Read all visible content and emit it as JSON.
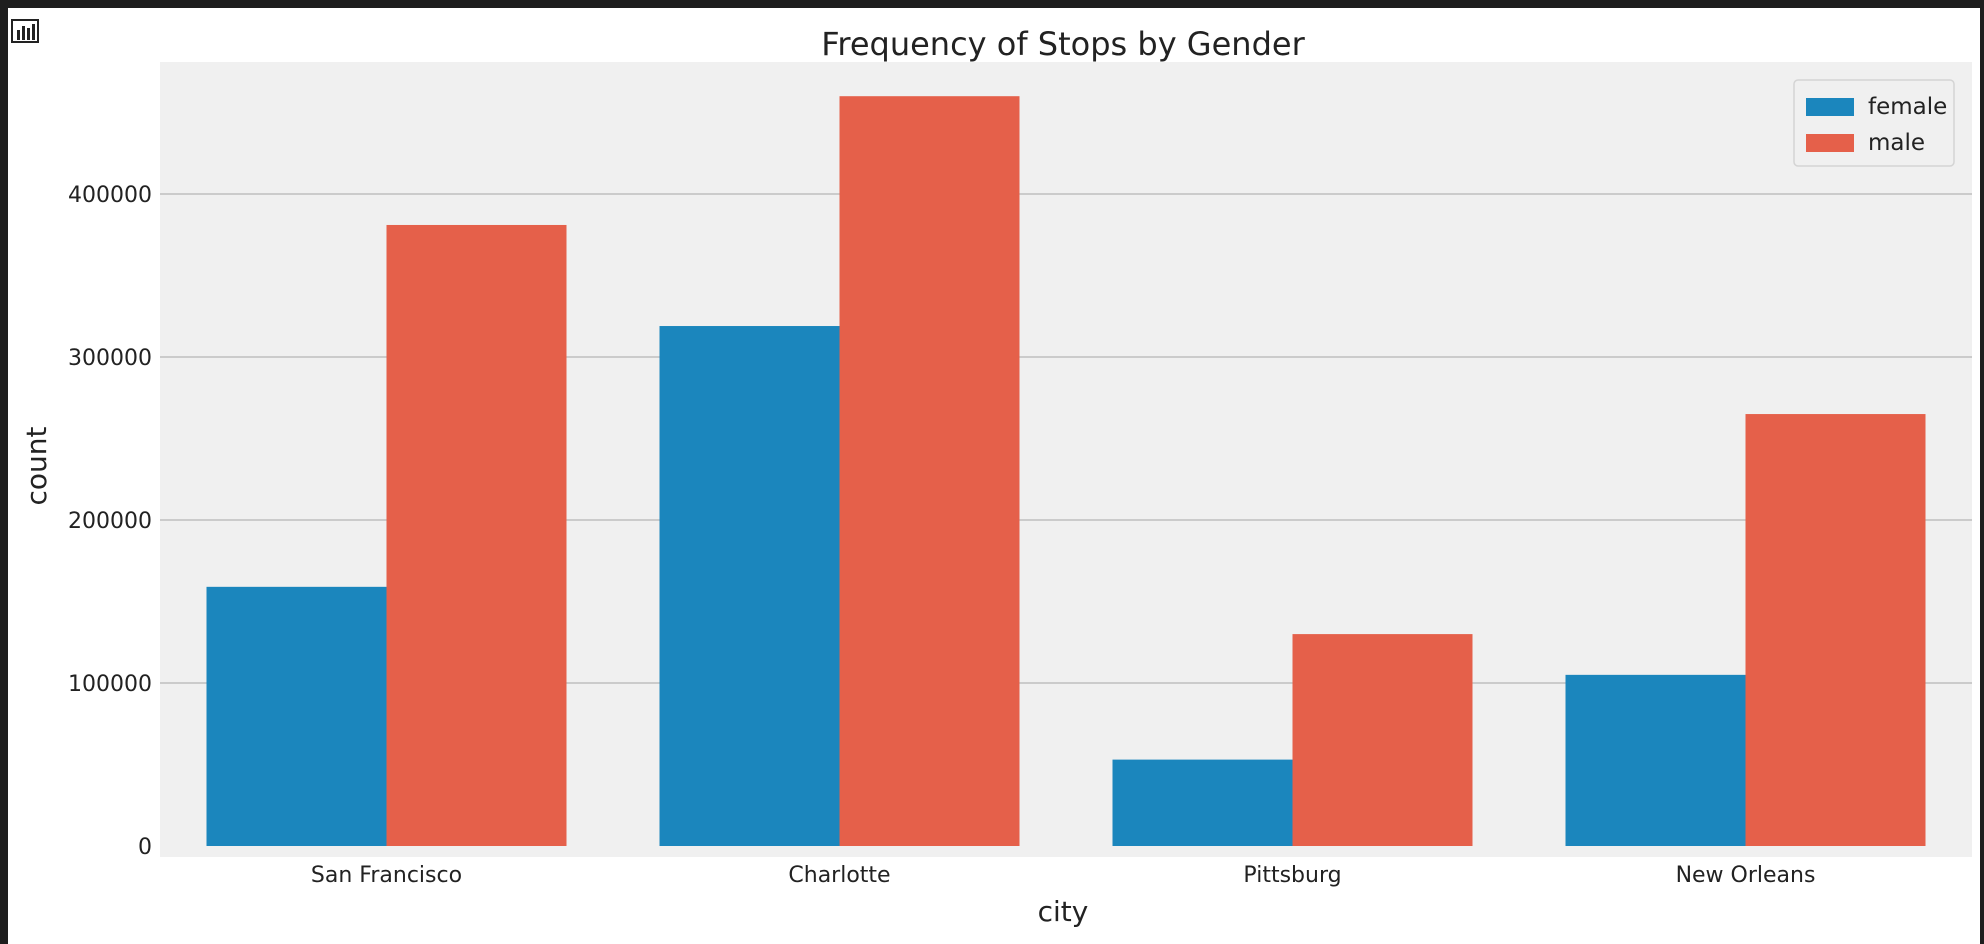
{
  "chart_data": {
    "type": "bar",
    "title": "Frequency of Stops by Gender",
    "xlabel": "city",
    "ylabel": "count",
    "categories": [
      "San Francisco",
      "Charlotte",
      "Pittsburg",
      "New Orleans"
    ],
    "series": [
      {
        "name": "female",
        "color": "#1b86bd",
        "values": [
          159000,
          319000,
          53000,
          105000
        ]
      },
      {
        "name": "male",
        "color": "#e5604a",
        "values": [
          381000,
          460000,
          130000,
          265000
        ]
      }
    ],
    "yticks": [
      0,
      100000,
      200000,
      300000,
      400000
    ],
    "ytick_labels": [
      "0",
      "100000",
      "200000",
      "300000",
      "400000"
    ],
    "ylim": [
      0,
      500000
    ],
    "grid": "horizontal",
    "legend": "top-right",
    "background": "#f0f0f0"
  }
}
